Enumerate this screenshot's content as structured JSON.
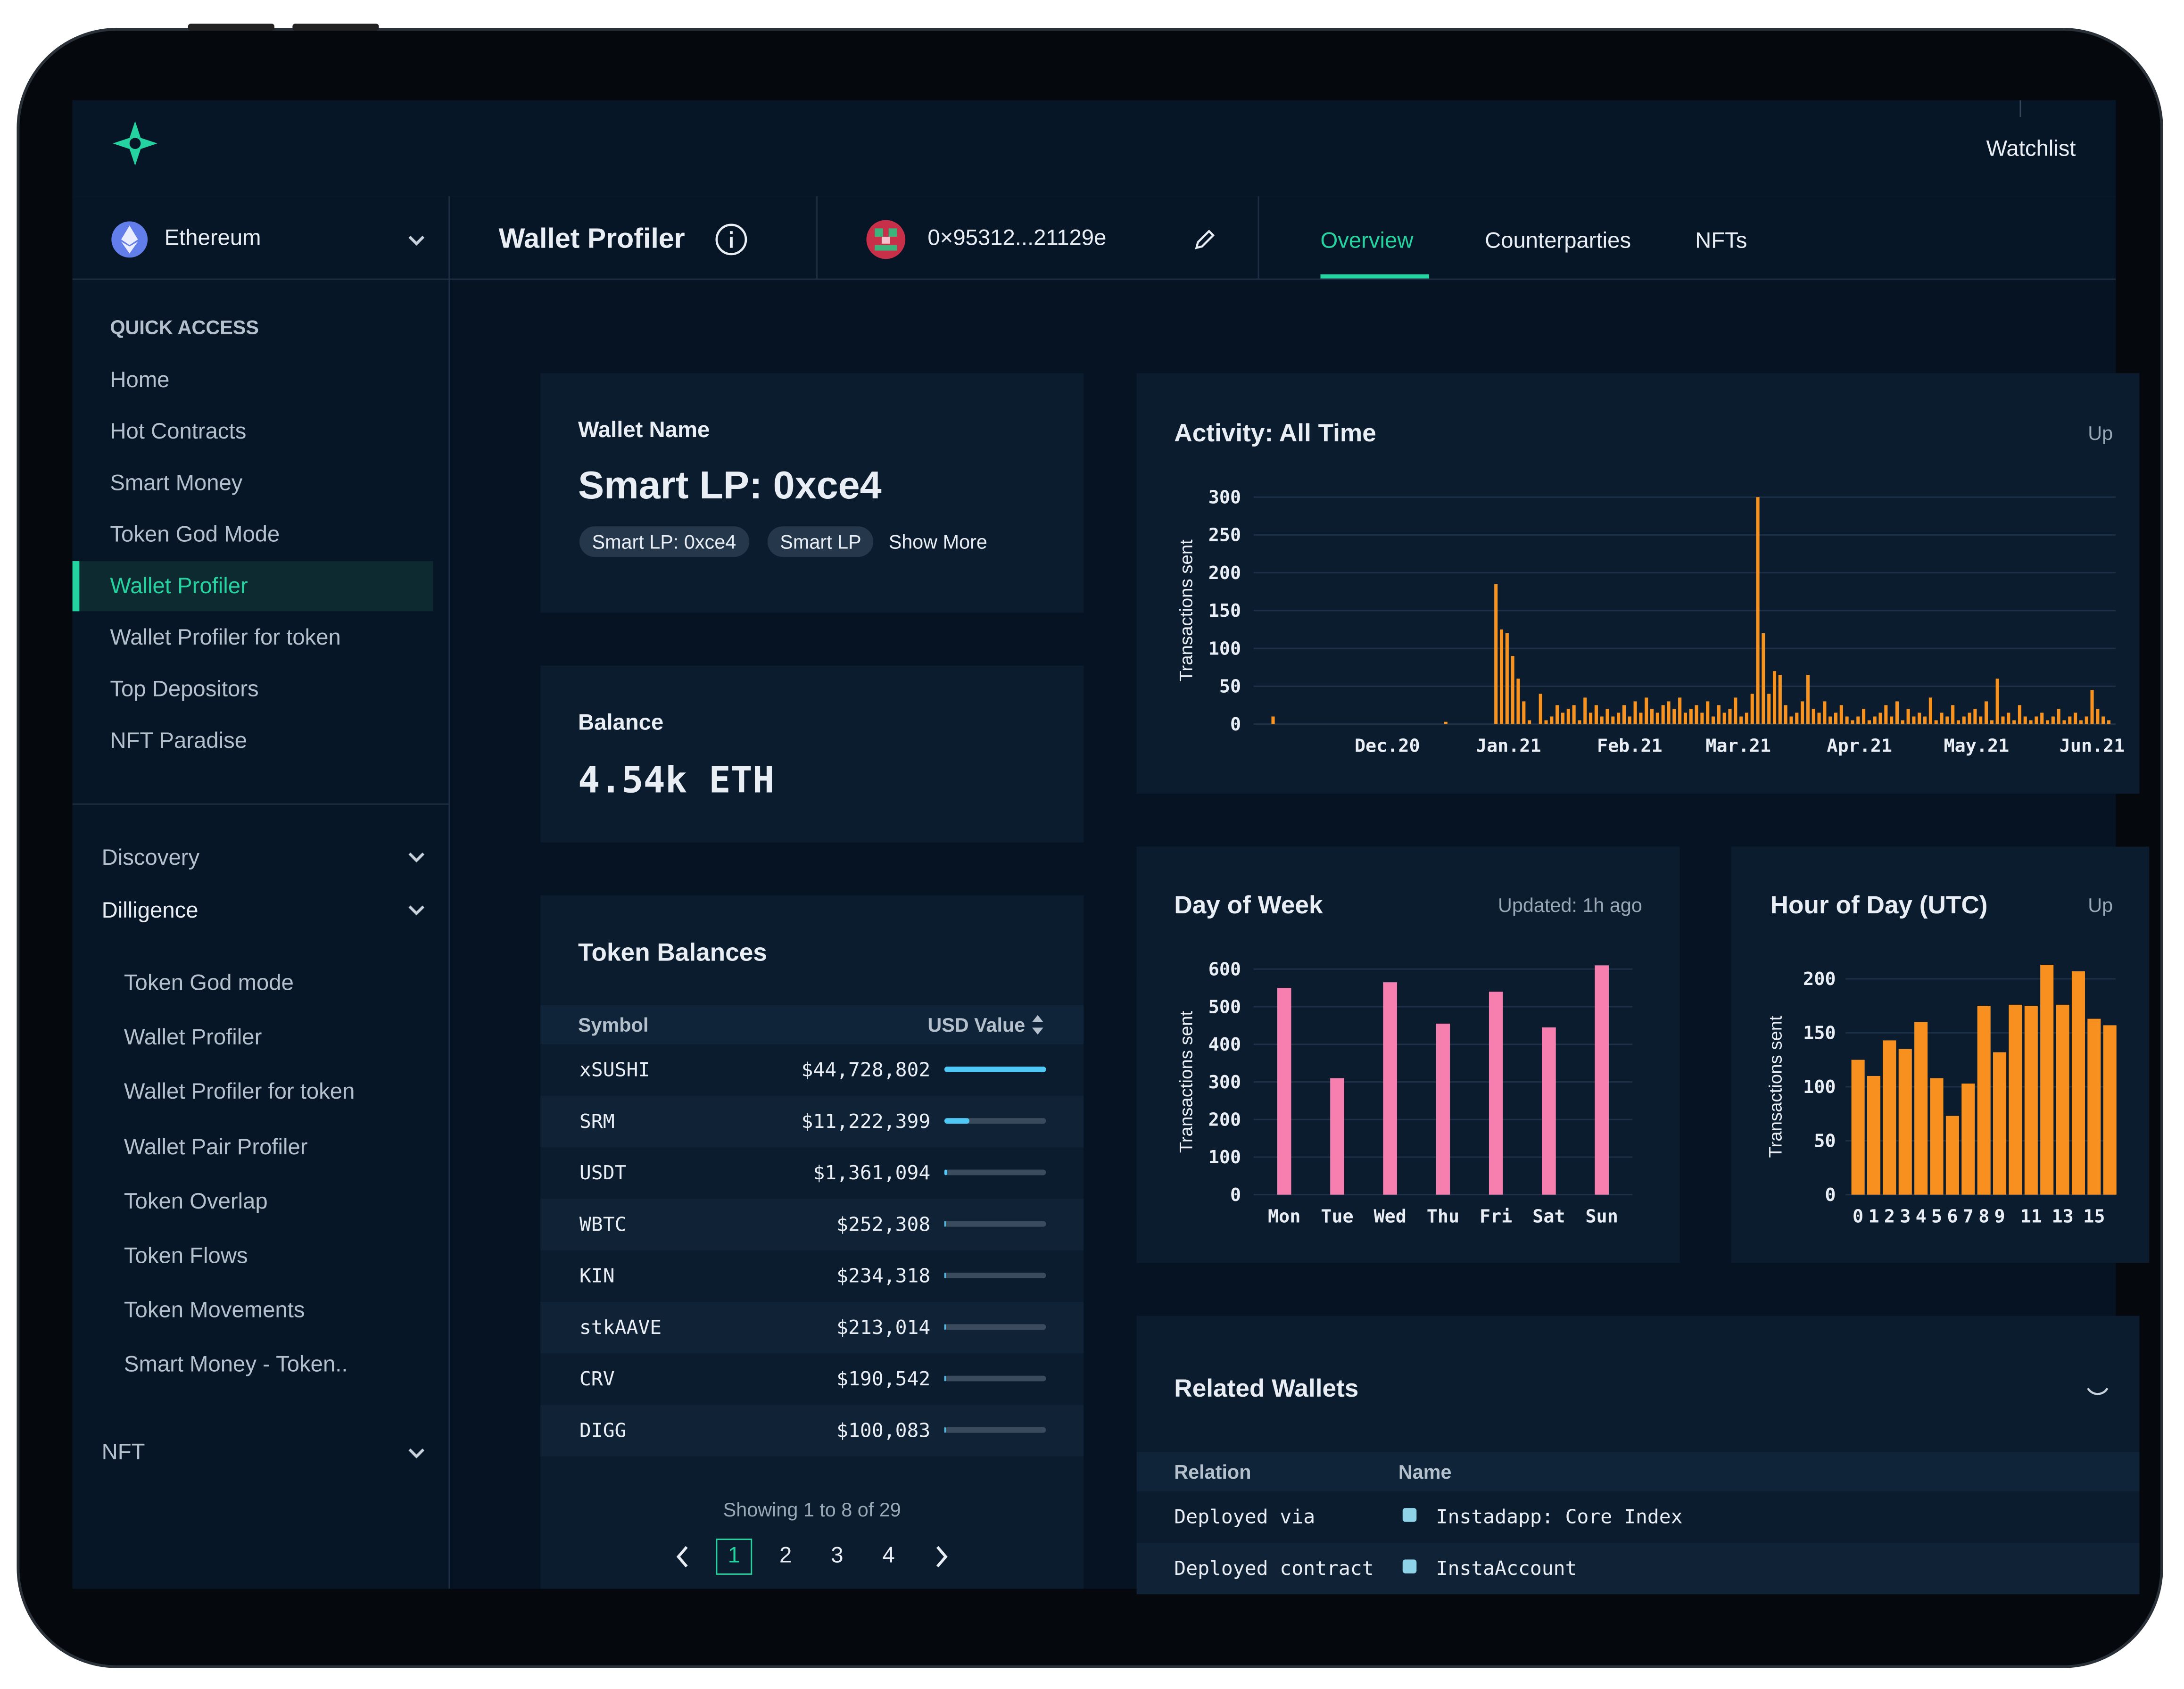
{
  "header": {
    "watchlist": "Watchlist"
  },
  "chain": "Ethereum",
  "page_title": "Wallet Profiler",
  "address": "0×95312...21129e",
  "tabs": [
    "Overview",
    "Counterparties",
    "NFTs"
  ],
  "sidebar": {
    "quick_access_title": "QUICK ACCESS",
    "quick_access": [
      "Home",
      "Hot Contracts",
      "Smart Money",
      "Token God Mode",
      "Wallet Profiler",
      "Wallet Profiler for token",
      "Top Depositors",
      "NFT Paradise"
    ],
    "sections": [
      "Discovery",
      "Dilligence"
    ],
    "dilligence_items": [
      "Token God mode",
      "Wallet Profiler",
      "Wallet Profiler for token",
      "Wallet Pair Profiler",
      "Token Overlap",
      "Token Flows",
      "Token Movements",
      "Smart Money - Token.."
    ],
    "nft": "NFT"
  },
  "wallet": {
    "label": "Wallet Name",
    "name": "Smart LP: 0xce4",
    "tags": [
      "Smart LP: 0xce4",
      "Smart LP"
    ],
    "show_more": "Show More"
  },
  "balance": {
    "label": "Balance",
    "value": "4.54k ETH"
  },
  "token_balances": {
    "title": "Token Balances",
    "columns": [
      "Symbol",
      "USD Value"
    ],
    "rows": [
      {
        "symbol": "xSUSHI",
        "usd": 44728802,
        "usd_label": "$44,728,802"
      },
      {
        "symbol": "SRM",
        "usd": 11222399,
        "usd_label": "$11,222,399"
      },
      {
        "symbol": "USDT",
        "usd": 1361094,
        "usd_label": "$1,361,094"
      },
      {
        "symbol": "WBTC",
        "usd": 252308,
        "usd_label": "$252,308"
      },
      {
        "symbol": "KIN",
        "usd": 234318,
        "usd_label": "$234,318"
      },
      {
        "symbol": "stkAAVE",
        "usd": 213014,
        "usd_label": "$213,014"
      },
      {
        "symbol": "CRV",
        "usd": 190542,
        "usd_label": "$190,542"
      },
      {
        "symbol": "DIGG",
        "usd": 100083,
        "usd_label": "$100,083"
      }
    ],
    "footer": "Showing 1 to 8 of 29",
    "pages": [
      "1",
      "2",
      "3",
      "4"
    ]
  },
  "activity": {
    "type": "bar",
    "title": "Activity: All Time",
    "side_label": "Up",
    "y_label": "Transactions sent",
    "color": "#f7931e",
    "grid": true,
    "values": [
      10,
      0,
      0,
      0,
      0,
      0,
      0,
      0,
      0,
      0,
      0,
      0,
      0,
      0,
      0,
      0,
      0,
      0,
      0,
      0,
      0,
      0,
      0,
      0,
      0,
      0,
      0,
      0,
      0,
      0,
      0,
      3,
      0,
      0,
      0,
      0,
      0,
      0,
      0,
      0,
      185,
      125,
      120,
      90,
      60,
      30,
      5,
      0,
      40,
      5,
      10,
      25,
      15,
      20,
      25,
      5,
      35,
      15,
      25,
      10,
      20,
      10,
      15,
      25,
      10,
      30,
      15,
      35,
      20,
      15,
      25,
      30,
      20,
      35,
      15,
      20,
      25,
      15,
      30,
      10,
      25,
      15,
      20,
      35,
      10,
      15,
      40,
      300,
      120,
      40,
      70,
      65,
      25,
      10,
      15,
      30,
      65,
      20,
      15,
      30,
      10,
      15,
      25,
      10,
      5,
      10,
      20,
      5,
      10,
      15,
      25,
      10,
      30,
      5,
      20,
      10,
      15,
      10,
      35,
      5,
      15,
      10,
      25,
      5,
      10,
      15,
      20,
      10,
      30,
      5,
      60,
      10,
      15,
      5,
      25,
      10,
      5,
      10,
      15,
      5,
      10,
      20,
      5,
      10,
      15,
      5,
      10,
      45,
      20,
      10,
      5
    ],
    "xlim": [
      0,
      151
    ],
    "xticks": [
      {
        "value": 20.5,
        "label": "Dec.20"
      },
      {
        "value": 42.25,
        "label": "Jan.21"
      },
      {
        "value": 64,
        "label": "Feb.21"
      },
      {
        "value": 83.5,
        "label": "Mar.21"
      },
      {
        "value": 105.25,
        "label": "Apr.21"
      },
      {
        "value": 126.25,
        "label": "May.21"
      },
      {
        "value": 147,
        "label": "Jun.21"
      }
    ],
    "ylim": [
      0,
      300
    ],
    "yticks": [
      0,
      50,
      100,
      150,
      200,
      250,
      300
    ]
  },
  "day_of_week": {
    "type": "bar",
    "title": "Day of Week",
    "updated": "Updated: 1h ago",
    "y_label": "Transactions sent",
    "color": "#f77fb0",
    "grid": true,
    "categories": [
      "Mon",
      "Tue",
      "Wed",
      "Thu",
      "Fri",
      "Sat",
      "Sun"
    ],
    "values": [
      550,
      310,
      565,
      455,
      540,
      445,
      610
    ],
    "ylim": [
      0,
      600
    ],
    "yticks": [
      0,
      100,
      200,
      300,
      400,
      500,
      600
    ]
  },
  "hour_of_day": {
    "type": "bar",
    "title": "Hour of Day (UTC)",
    "side_label": "Up",
    "y_label": "Transactions sent",
    "color": "#f7901e",
    "grid": true,
    "categories": [
      "0",
      "1",
      "2",
      "3",
      "4",
      "5",
      "6",
      "7",
      "8",
      "9",
      null,
      "11",
      null,
      "13",
      null,
      "15",
      null
    ],
    "values": [
      125,
      110,
      143,
      135,
      160,
      108,
      73,
      103,
      175,
      132,
      176,
      175,
      213,
      176,
      207,
      163,
      157
    ],
    "ylim": [
      0,
      200
    ],
    "yticks": [
      0,
      50,
      100,
      150,
      200
    ]
  },
  "related_wallets": {
    "title": "Related Wallets",
    "columns": [
      "Relation",
      "Name"
    ],
    "rows": [
      [
        "Deployed via",
        "Instadapp: Core Index"
      ],
      [
        "Deployed contract",
        "InstaAccount"
      ]
    ]
  }
}
